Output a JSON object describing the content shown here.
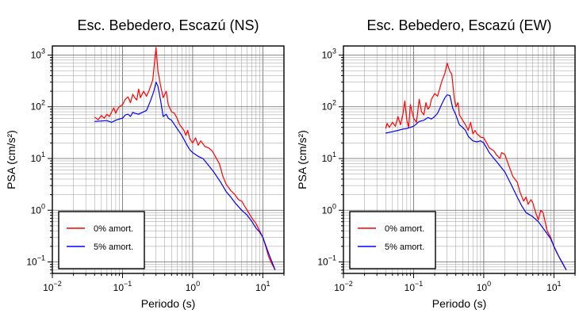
{
  "chart_data": [
    {
      "type": "line",
      "title": "Esc. Bebedero, Escazú (NS)",
      "xlabel": "Periodo (s)",
      "ylabel": "PSA (cm/s²)",
      "xscale": "log",
      "yscale": "log",
      "xlim": [
        0.01,
        20
      ],
      "ylim": [
        0.06,
        1500
      ],
      "x_ticks": [
        {
          "base": "10",
          "exp": "−2"
        },
        {
          "base": "10",
          "exp": "−1"
        },
        {
          "base": "10",
          "exp": "0"
        },
        {
          "base": "10",
          "exp": "1"
        }
      ],
      "y_ticks": [
        {
          "base": "10",
          "exp": "−1"
        },
        {
          "base": "10",
          "exp": "0"
        },
        {
          "base": "10",
          "exp": "1"
        },
        {
          "base": "10",
          "exp": "2"
        },
        {
          "base": "10",
          "exp": "3"
        }
      ],
      "grid": true,
      "legend_placement": "bottom-left",
      "series": [
        {
          "name": "0% amort.",
          "color": "#ff0000",
          "points": [
            [
              0.04,
              63
            ],
            [
              0.045,
              56
            ],
            [
              0.05,
              68
            ],
            [
              0.055,
              60
            ],
            [
              0.06,
              72
            ],
            [
              0.065,
              65
            ],
            [
              0.07,
              80
            ],
            [
              0.075,
              95
            ],
            [
              0.08,
              75
            ],
            [
              0.085,
              90
            ],
            [
              0.09,
              100
            ],
            [
              0.1,
              110
            ],
            [
              0.11,
              140
            ],
            [
              0.12,
              155
            ],
            [
              0.13,
              120
            ],
            [
              0.14,
              175
            ],
            [
              0.15,
              150
            ],
            [
              0.16,
              135
            ],
            [
              0.17,
              220
            ],
            [
              0.18,
              150
            ],
            [
              0.2,
              200
            ],
            [
              0.22,
              160
            ],
            [
              0.24,
              210
            ],
            [
              0.27,
              330
            ],
            [
              0.3,
              1400
            ],
            [
              0.32,
              500
            ],
            [
              0.35,
              250
            ],
            [
              0.38,
              150
            ],
            [
              0.42,
              200
            ],
            [
              0.45,
              110
            ],
            [
              0.5,
              80
            ],
            [
              0.55,
              75
            ],
            [
              0.6,
              60
            ],
            [
              0.65,
              45
            ],
            [
              0.7,
              40
            ],
            [
              0.75,
              35
            ],
            [
              0.8,
              28
            ],
            [
              0.85,
              35
            ],
            [
              0.9,
              25
            ],
            [
              0.95,
              22
            ],
            [
              1.0,
              20
            ],
            [
              1.1,
              25
            ],
            [
              1.2,
              18
            ],
            [
              1.3,
              22
            ],
            [
              1.5,
              17
            ],
            [
              1.7,
              16
            ],
            [
              1.9,
              14
            ],
            [
              2.1,
              11
            ],
            [
              2.4,
              8
            ],
            [
              2.7,
              4.5
            ],
            [
              3.0,
              3.2
            ],
            [
              3.5,
              2.4
            ],
            [
              4.0,
              2.0
            ],
            [
              4.5,
              1.6
            ],
            [
              5.0,
              1.5
            ],
            [
              5.5,
              1.2
            ],
            [
              6.0,
              1.0
            ],
            [
              7.0,
              0.7
            ],
            [
              8.0,
              0.55
            ],
            [
              9.0,
              0.4
            ],
            [
              10,
              0.3
            ],
            [
              11,
              0.2
            ],
            [
              12,
              0.13
            ],
            [
              13,
              0.1
            ],
            [
              15,
              0.07
            ]
          ]
        },
        {
          "name": "5% amort.",
          "color": "#0000ff",
          "points": [
            [
              0.04,
              52
            ],
            [
              0.05,
              53
            ],
            [
              0.06,
              54
            ],
            [
              0.07,
              50
            ],
            [
              0.08,
              55
            ],
            [
              0.09,
              58
            ],
            [
              0.1,
              60
            ],
            [
              0.11,
              70
            ],
            [
              0.12,
              72
            ],
            [
              0.13,
              65
            ],
            [
              0.14,
              78
            ],
            [
              0.15,
              75
            ],
            [
              0.17,
              72
            ],
            [
              0.2,
              80
            ],
            [
              0.22,
              85
            ],
            [
              0.25,
              130
            ],
            [
              0.28,
              200
            ],
            [
              0.3,
              300
            ],
            [
              0.32,
              250
            ],
            [
              0.35,
              130
            ],
            [
              0.38,
              65
            ],
            [
              0.42,
              72
            ],
            [
              0.45,
              60
            ],
            [
              0.5,
              55
            ],
            [
              0.6,
              38
            ],
            [
              0.7,
              28
            ],
            [
              0.8,
              20
            ],
            [
              0.9,
              15
            ],
            [
              1.0,
              13
            ],
            [
              1.2,
              11
            ],
            [
              1.4,
              10
            ],
            [
              1.6,
              8
            ],
            [
              2.0,
              5.5
            ],
            [
              2.5,
              3.5
            ],
            [
              3.0,
              2.3
            ],
            [
              3.5,
              1.8
            ],
            [
              4.0,
              1.4
            ],
            [
              5.0,
              1.0
            ],
            [
              6.0,
              0.8
            ],
            [
              7.0,
              0.6
            ],
            [
              8.0,
              0.45
            ],
            [
              9.0,
              0.38
            ],
            [
              10,
              0.3
            ],
            [
              12,
              0.15
            ],
            [
              15,
              0.07
            ]
          ]
        }
      ]
    },
    {
      "type": "line",
      "title": "Esc. Bebedero, Escazú (EW)",
      "xlabel": "Periodo (s)",
      "ylabel": "PSA (cm/s²)",
      "xscale": "log",
      "yscale": "log",
      "xlim": [
        0.01,
        20
      ],
      "ylim": [
        0.06,
        1500
      ],
      "x_ticks": [
        {
          "base": "10",
          "exp": "−2"
        },
        {
          "base": "10",
          "exp": "−1"
        },
        {
          "base": "10",
          "exp": "0"
        },
        {
          "base": "10",
          "exp": "1"
        }
      ],
      "y_ticks": [
        {
          "base": "10",
          "exp": "−1"
        },
        {
          "base": "10",
          "exp": "0"
        },
        {
          "base": "10",
          "exp": "1"
        },
        {
          "base": "10",
          "exp": "2"
        },
        {
          "base": "10",
          "exp": "3"
        }
      ],
      "grid": true,
      "legend_placement": "bottom-left",
      "series": [
        {
          "name": "0% amort.",
          "color": "#ff0000",
          "points": [
            [
              0.04,
              38
            ],
            [
              0.042,
              48
            ],
            [
              0.045,
              40
            ],
            [
              0.05,
              50
            ],
            [
              0.055,
              42
            ],
            [
              0.06,
              65
            ],
            [
              0.065,
              45
            ],
            [
              0.07,
              70
            ],
            [
              0.075,
              130
            ],
            [
              0.08,
              55
            ],
            [
              0.085,
              40
            ],
            [
              0.09,
              110
            ],
            [
              0.1,
              60
            ],
            [
              0.11,
              50
            ],
            [
              0.12,
              140
            ],
            [
              0.13,
              80
            ],
            [
              0.14,
              70
            ],
            [
              0.15,
              120
            ],
            [
              0.16,
              90
            ],
            [
              0.17,
              100
            ],
            [
              0.18,
              140
            ],
            [
              0.2,
              180
            ],
            [
              0.22,
              160
            ],
            [
              0.25,
              300
            ],
            [
              0.28,
              450
            ],
            [
              0.3,
              700
            ],
            [
              0.33,
              480
            ],
            [
              0.35,
              430
            ],
            [
              0.38,
              150
            ],
            [
              0.4,
              100
            ],
            [
              0.43,
              120
            ],
            [
              0.45,
              70
            ],
            [
              0.5,
              55
            ],
            [
              0.55,
              45
            ],
            [
              0.6,
              35
            ],
            [
              0.65,
              50
            ],
            [
              0.7,
              30
            ],
            [
              0.75,
              35
            ],
            [
              0.8,
              30
            ],
            [
              0.85,
              28
            ],
            [
              0.9,
              26
            ],
            [
              1.0,
              25
            ],
            [
              1.1,
              20
            ],
            [
              1.2,
              16
            ],
            [
              1.3,
              15
            ],
            [
              1.4,
              14
            ],
            [
              1.5,
              12
            ],
            [
              1.7,
              10
            ],
            [
              1.8,
              13
            ],
            [
              2.0,
              12
            ],
            [
              2.3,
              7
            ],
            [
              2.6,
              4.5
            ],
            [
              3.0,
              3.5
            ],
            [
              3.3,
              2.2
            ],
            [
              3.7,
              1.5
            ],
            [
              4.0,
              1.8
            ],
            [
              4.3,
              1.3
            ],
            [
              4.7,
              1.6
            ],
            [
              5.0,
              1.4
            ],
            [
              5.5,
              0.9
            ],
            [
              6.0,
              0.65
            ],
            [
              6.5,
              1.0
            ],
            [
              7.0,
              0.9
            ],
            [
              7.5,
              0.6
            ],
            [
              8.0,
              0.4
            ],
            [
              9.0,
              0.3
            ],
            [
              10,
              0.2
            ],
            [
              11,
              0.15
            ],
            [
              13,
              0.1
            ],
            [
              15,
              0.07
            ]
          ]
        },
        {
          "name": "5% amort.",
          "color": "#0000ff",
          "points": [
            [
              0.04,
              31
            ],
            [
              0.05,
              33
            ],
            [
              0.06,
              35
            ],
            [
              0.07,
              37
            ],
            [
              0.08,
              38
            ],
            [
              0.1,
              42
            ],
            [
              0.12,
              52
            ],
            [
              0.14,
              55
            ],
            [
              0.16,
              62
            ],
            [
              0.18,
              58
            ],
            [
              0.2,
              65
            ],
            [
              0.22,
              75
            ],
            [
              0.25,
              110
            ],
            [
              0.28,
              150
            ],
            [
              0.3,
              170
            ],
            [
              0.33,
              165
            ],
            [
              0.36,
              95
            ],
            [
              0.4,
              70
            ],
            [
              0.45,
              45
            ],
            [
              0.5,
              40
            ],
            [
              0.55,
              35
            ],
            [
              0.6,
              27
            ],
            [
              0.7,
              22
            ],
            [
              0.8,
              21
            ],
            [
              0.9,
              22
            ],
            [
              1.0,
              20
            ],
            [
              1.2,
              13
            ],
            [
              1.4,
              10
            ],
            [
              1.6,
              8
            ],
            [
              2.0,
              5.5
            ],
            [
              2.5,
              3.0
            ],
            [
              3.0,
              1.8
            ],
            [
              3.5,
              1.2
            ],
            [
              4.0,
              0.9
            ],
            [
              5.0,
              0.75
            ],
            [
              6.0,
              0.6
            ],
            [
              7.0,
              0.45
            ],
            [
              8.0,
              0.35
            ],
            [
              9.0,
              0.28
            ],
            [
              10,
              0.2
            ],
            [
              12,
              0.12
            ],
            [
              15,
              0.07
            ]
          ]
        }
      ]
    }
  ]
}
